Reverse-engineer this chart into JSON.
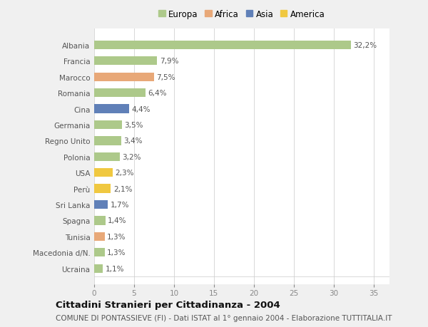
{
  "categories": [
    "Albania",
    "Francia",
    "Marocco",
    "Romania",
    "Cina",
    "Germania",
    "Regno Unito",
    "Polonia",
    "USA",
    "Perù",
    "Sri Lanka",
    "Spagna",
    "Tunisia",
    "Macedonia d/N.",
    "Ucraina"
  ],
  "values": [
    32.2,
    7.9,
    7.5,
    6.4,
    4.4,
    3.5,
    3.4,
    3.2,
    2.3,
    2.1,
    1.7,
    1.4,
    1.3,
    1.3,
    1.1
  ],
  "continents": [
    "Europa",
    "Europa",
    "Africa",
    "Europa",
    "Asia",
    "Europa",
    "Europa",
    "Europa",
    "America",
    "America",
    "Asia",
    "Europa",
    "Africa",
    "Europa",
    "Europa"
  ],
  "continent_colors": {
    "Europa": "#adc98a",
    "Africa": "#e8a878",
    "Asia": "#6080b8",
    "America": "#f0c840"
  },
  "legend_order": [
    "Europa",
    "Africa",
    "Asia",
    "America"
  ],
  "title": "Cittadini Stranieri per Cittadinanza - 2004",
  "subtitle": "COMUNE DI PONTASSIEVE (FI) - Dati ISTAT al 1° gennaio 2004 - Elaborazione TUTTITALIA.IT",
  "xlim": [
    0,
    37
  ],
  "xticks": [
    0,
    5,
    10,
    15,
    20,
    25,
    30,
    35
  ],
  "background_color": "#f0f0f0",
  "plot_bg_color": "#ffffff",
  "grid_color": "#d8d8d8",
  "bar_height": 0.55,
  "label_fontsize": 7.5,
  "value_fontsize": 7.5,
  "title_fontsize": 9.5,
  "subtitle_fontsize": 7.5,
  "legend_fontsize": 8.5
}
